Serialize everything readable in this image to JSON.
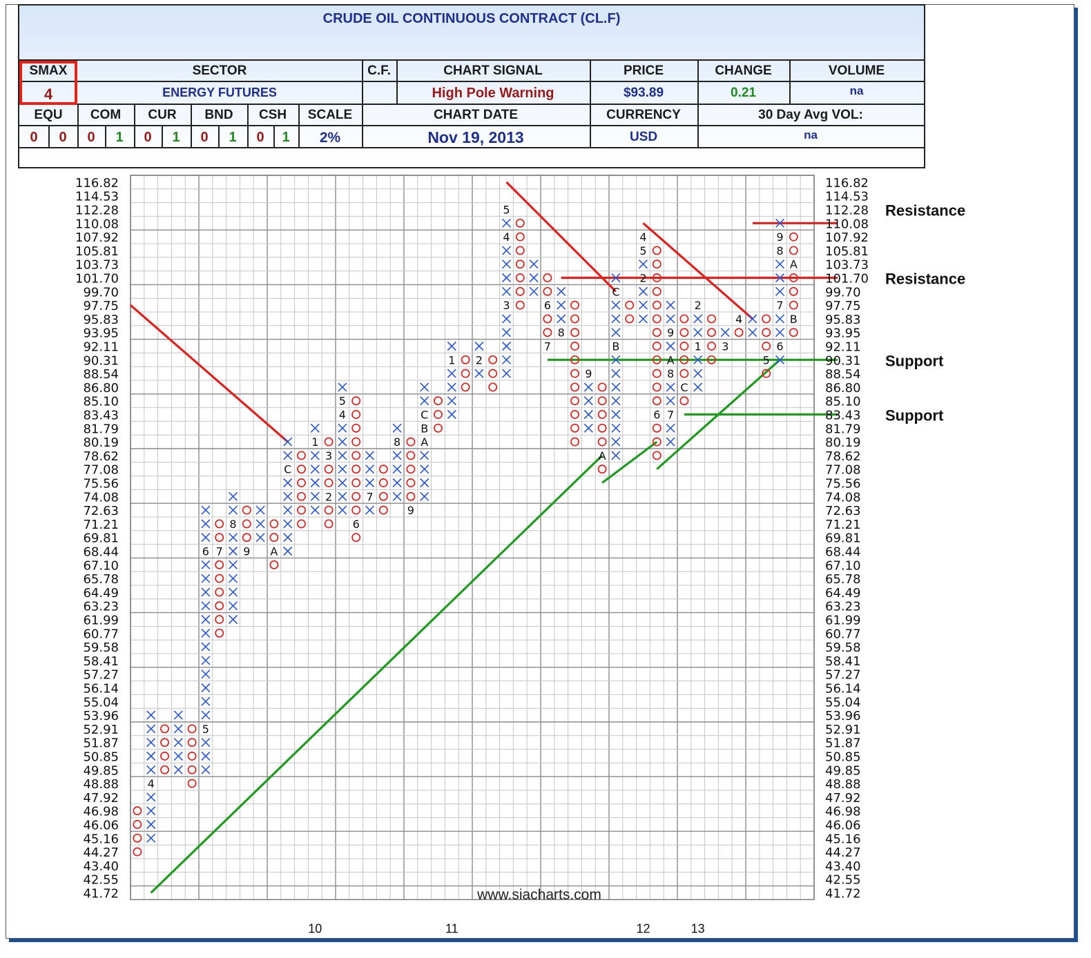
{
  "header": {
    "title": "CRUDE OIL CONTINUOUS CONTRACT (CL.F)",
    "smax_label": "SMAX",
    "smax_value": "4",
    "sector_label": "SECTOR",
    "sector_value": "ENERGY FUTURES",
    "cf_label": "C.F.",
    "chart_signal_label": "CHART SIGNAL",
    "chart_signal_value": "High Pole Warning",
    "price_label": "PRICE",
    "price_value": "$93.89",
    "change_label": "CHANGE",
    "change_value": "0.21",
    "volume_label": "VOLUME",
    "volume_value": "na",
    "chart_date_label": "CHART DATE",
    "chart_date_value": "Nov 19, 2013",
    "currency_label": "CURRENCY",
    "currency_value": "USD",
    "avg_vol_label": "30 Day Avg VOL:",
    "avg_vol_value": "na",
    "scale_label": "SCALE",
    "scale_value": "2%",
    "classes": [
      {
        "label": "EQU",
        "values": [
          "0",
          "0"
        ]
      },
      {
        "label": "COM",
        "values": [
          "0",
          "1"
        ]
      },
      {
        "label": "CUR",
        "values": [
          "0",
          "1"
        ]
      },
      {
        "label": "BND",
        "values": [
          "0",
          "1"
        ]
      },
      {
        "label": "CSH",
        "values": [
          "0",
          "1"
        ]
      }
    ],
    "colors": {
      "red": "#9a1a1a",
      "green": "#1f8a1f",
      "navy": "#1f2f8f",
      "smax_border": "#e2231a"
    }
  },
  "chart_data": {
    "type": "point-and-figure",
    "scale": "2%",
    "y_ticks": [
      "116.82",
      "114.53",
      "112.28",
      "110.08",
      "107.92",
      "105.81",
      "103.73",
      "101.70",
      "99.70",
      "97.75",
      "95.83",
      "93.95",
      "92.11",
      "90.31",
      "88.54",
      "86.80",
      "85.10",
      "83.43",
      "81.79",
      "80.19",
      "78.62",
      "77.08",
      "75.56",
      "74.08",
      "72.63",
      "71.21",
      "69.81",
      "68.44",
      "67.10",
      "65.78",
      "64.49",
      "63.23",
      "61.99",
      "60.77",
      "59.58",
      "58.41",
      "57.27",
      "56.14",
      "55.04",
      "53.96",
      "52.91",
      "51.87",
      "50.85",
      "49.85",
      "48.88",
      "47.92",
      "46.98",
      "46.06",
      "45.16",
      "44.27",
      "43.40",
      "42.55",
      "41.72"
    ],
    "x_year_labels": [
      {
        "label": "10",
        "col": 13
      },
      {
        "label": "11",
        "col": 23
      },
      {
        "label": "12",
        "col": 37
      },
      {
        "label": "13",
        "col": 41
      }
    ],
    "columns": [
      {
        "t": "O",
        "hi": 46.98,
        "lo": 44.27
      },
      {
        "t": "X",
        "hi": 53.96,
        "lo": 45.16,
        "m": {
          "48.88": "4"
        }
      },
      {
        "t": "O",
        "hi": 52.91,
        "lo": 49.85
      },
      {
        "t": "X",
        "hi": 53.96,
        "lo": 49.85
      },
      {
        "t": "O",
        "hi": 52.91,
        "lo": 48.88
      },
      {
        "t": "X",
        "hi": 72.63,
        "lo": 49.85,
        "m": {
          "52.91": "5",
          "68.44": "6"
        }
      },
      {
        "t": "O",
        "hi": 71.21,
        "lo": 60.77,
        "m": {
          "68.44": "7"
        }
      },
      {
        "t": "X",
        "hi": 74.08,
        "lo": 61.99,
        "m": {
          "71.21": "8"
        }
      },
      {
        "t": "O",
        "hi": 72.63,
        "lo": 68.44,
        "m": {
          "68.44": "9"
        }
      },
      {
        "t": "X",
        "hi": 72.63,
        "lo": 69.81
      },
      {
        "t": "O",
        "hi": 71.21,
        "lo": 67.1,
        "m": {
          "68.44": "A"
        }
      },
      {
        "t": "X",
        "hi": 80.19,
        "lo": 68.44,
        "m": {
          "77.08": "C"
        }
      },
      {
        "t": "O",
        "hi": 78.62,
        "lo": 71.21
      },
      {
        "t": "X",
        "hi": 81.79,
        "lo": 72.63,
        "m": {
          "80.19": "1"
        }
      },
      {
        "t": "O",
        "hi": 80.19,
        "lo": 71.21,
        "m": {
          "74.08": "2",
          "78.62": "3"
        }
      },
      {
        "t": "X",
        "hi": 86.8,
        "lo": 72.63,
        "m": {
          "83.43": "4",
          "85.10": "5"
        }
      },
      {
        "t": "O",
        "hi": 85.1,
        "lo": 69.81,
        "m": {
          "71.21": "6"
        }
      },
      {
        "t": "X",
        "hi": 78.62,
        "lo": 72.63,
        "m": {
          "74.08": "7"
        }
      },
      {
        "t": "O",
        "hi": 77.08,
        "lo": 72.63
      },
      {
        "t": "X",
        "hi": 81.79,
        "lo": 74.08,
        "m": {
          "80.19": "8"
        }
      },
      {
        "t": "O",
        "hi": 80.19,
        "lo": 72.63,
        "m": {
          "72.63": "9"
        }
      },
      {
        "t": "X",
        "hi": 86.8,
        "lo": 74.08,
        "m": {
          "80.19": "A",
          "81.79": "B",
          "83.43": "C"
        }
      },
      {
        "t": "O",
        "hi": 85.1,
        "lo": 81.79
      },
      {
        "t": "X",
        "hi": 92.11,
        "lo": 83.43,
        "m": {
          "90.31": "1"
        }
      },
      {
        "t": "O",
        "hi": 90.31,
        "lo": 86.8
      },
      {
        "t": "X",
        "hi": 92.11,
        "lo": 88.54,
        "m": {
          "90.31": "2"
        }
      },
      {
        "t": "O",
        "hi": 90.31,
        "lo": 86.8
      },
      {
        "t": "X",
        "hi": 112.28,
        "lo": 88.54,
        "m": {
          "97.75": "3",
          "107.92": "4",
          "112.28": "5"
        }
      },
      {
        "t": "O",
        "hi": 110.08,
        "lo": 97.75
      },
      {
        "t": "X",
        "hi": 103.73,
        "lo": 99.7
      },
      {
        "t": "O",
        "hi": 101.7,
        "lo": 92.11,
        "m": {
          "92.11": "7",
          "97.75": "6"
        }
      },
      {
        "t": "X",
        "hi": 99.7,
        "lo": 93.95,
        "m": {
          "93.95": "8"
        }
      },
      {
        "t": "O",
        "hi": 97.75,
        "lo": 80.19
      },
      {
        "t": "X",
        "hi": 88.54,
        "lo": 81.79,
        "m": {
          "88.54": "9"
        }
      },
      {
        "t": "O",
        "hi": 86.8,
        "lo": 77.08,
        "m": {
          "78.62": "A"
        }
      },
      {
        "t": "X",
        "hi": 101.7,
        "lo": 78.62,
        "m": {
          "92.11": "B",
          "99.70": "C"
        }
      },
      {
        "t": "O",
        "hi": 97.75,
        "lo": 95.83
      },
      {
        "t": "X",
        "hi": 107.92,
        "lo": 95.83,
        "m": {
          "101.70": "2",
          "105.81": "5",
          "107.92": "4"
        }
      },
      {
        "t": "O",
        "hi": 105.81,
        "lo": 78.62,
        "m": {
          "83.43": "6"
        }
      },
      {
        "t": "X",
        "hi": 97.75,
        "lo": 80.19,
        "m": {
          "83.43": "7",
          "88.54": "8",
          "90.31": "A",
          "93.95": "9"
        }
      },
      {
        "t": "O",
        "hi": 95.83,
        "lo": 85.1,
        "m": {
          "86.80": "C"
        }
      },
      {
        "t": "X",
        "hi": 97.75,
        "lo": 86.8,
        "m": {
          "92.11": "1",
          "97.75": "2"
        }
      },
      {
        "t": "O",
        "hi": 95.83,
        "lo": 90.31
      },
      {
        "t": "X",
        "hi": 93.95,
        "lo": 92.11,
        "m": {
          "92.11": "3"
        }
      },
      {
        "t": "O",
        "hi": 95.83,
        "lo": 93.95,
        "m": {
          "95.83": "4"
        }
      },
      {
        "t": "X",
        "hi": 95.83,
        "lo": 93.95
      },
      {
        "t": "O",
        "hi": 95.83,
        "lo": 88.54,
        "m": {
          "90.31": "5"
        }
      },
      {
        "t": "X",
        "hi": 110.08,
        "lo": 90.31,
        "m": {
          "92.11": "6",
          "97.75": "7",
          "105.81": "8",
          "107.92": "9"
        }
      },
      {
        "t": "O",
        "hi": 107.92,
        "lo": 93.95,
        "m": {
          "95.83": "B",
          "103.73": "A"
        }
      }
    ],
    "lines": [
      {
        "kind": "resistance",
        "color": "#e0201c",
        "from": [
          -1,
          97.75
        ],
        "to": [
          11,
          80.19
        ]
      },
      {
        "kind": "resistance",
        "color": "#e0201c",
        "from": [
          27,
          116.82
        ],
        "to": [
          35,
          99.7
        ]
      },
      {
        "kind": "resistance",
        "color": "#e0201c",
        "from": [
          37,
          110.08
        ],
        "to": [
          45,
          95.83
        ]
      },
      {
        "kind": "resistance",
        "color": "#e0201c",
        "from": [
          31,
          101.7
        ],
        "to": [
          50,
          101.7
        ]
      },
      {
        "kind": "resistance",
        "color": "#e0201c",
        "from": [
          45,
          110.08
        ],
        "to": [
          50,
          110.08
        ]
      },
      {
        "kind": "support",
        "color": "#1e9b1e",
        "from": [
          1,
          41.72
        ],
        "to": [
          34,
          78.62
        ]
      },
      {
        "kind": "support",
        "color": "#1e9b1e",
        "from": [
          34,
          75.56
        ],
        "to": [
          38,
          80.19
        ]
      },
      {
        "kind": "support",
        "color": "#1e9b1e",
        "from": [
          38,
          77.08
        ],
        "to": [
          47,
          90.31
        ]
      },
      {
        "kind": "support",
        "color": "#1e9b1e",
        "from": [
          30,
          90.31
        ],
        "to": [
          50,
          90.31
        ]
      },
      {
        "kind": "support",
        "color": "#1e9b1e",
        "from": [
          40,
          83.43
        ],
        "to": [
          50,
          83.43
        ]
      }
    ],
    "annotations": [
      {
        "text": "Resistance",
        "y": 112.28
      },
      {
        "text": "Resistance",
        "y": 101.7
      },
      {
        "text": "Support",
        "y": 90.31
      },
      {
        "text": "Support",
        "y": 83.43
      }
    ],
    "watermark": "www.siacharts.com"
  }
}
